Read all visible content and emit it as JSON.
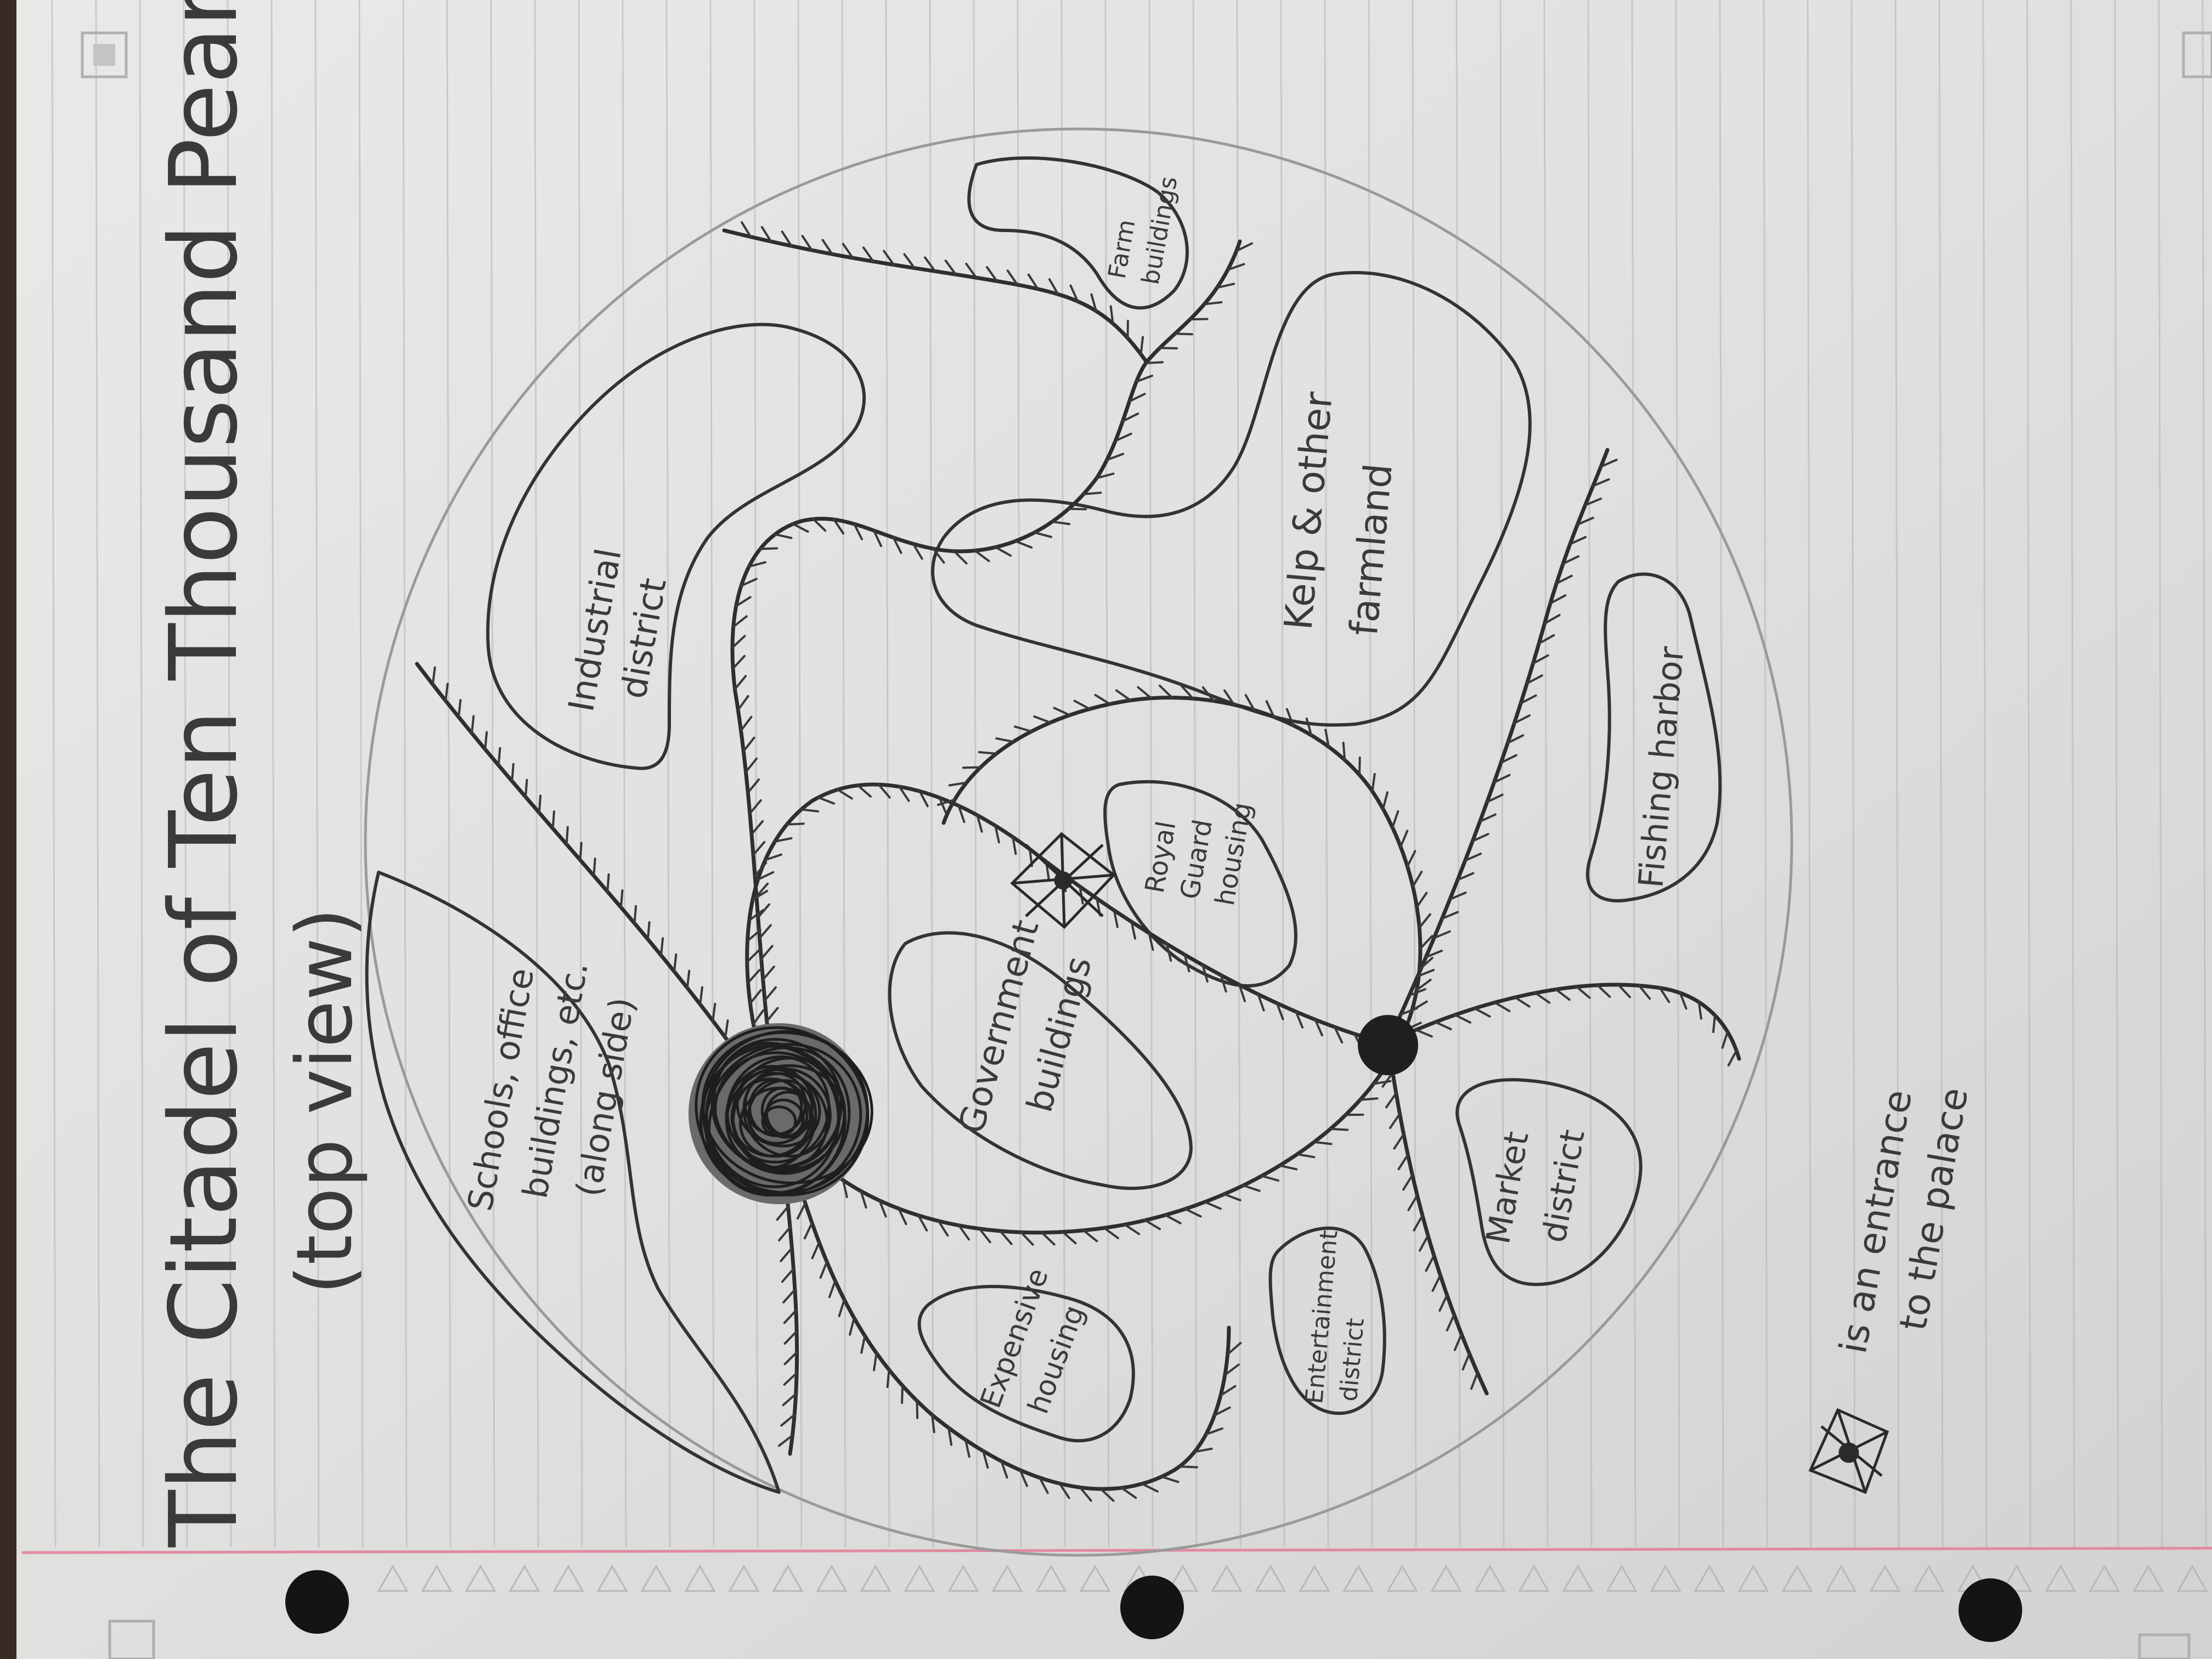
{
  "title_line1": "The Citadel of Ten Thousand Pearls",
  "title_line2": "(top view)",
  "districts": [
    {
      "id": "schools",
      "lines": [
        "Schools, office",
        "buildings, etc.",
        "(along side)"
      ]
    },
    {
      "id": "industrial",
      "lines": [
        "Industrial",
        "district"
      ]
    },
    {
      "id": "farm-buildings",
      "lines": [
        "Farm",
        "buildings"
      ]
    },
    {
      "id": "kelp-farmland",
      "lines": [
        "Kelp & other",
        "farmland"
      ]
    },
    {
      "id": "royal-guard",
      "lines": [
        "Royal",
        "Guard",
        "housing"
      ]
    },
    {
      "id": "government",
      "lines": [
        "Government",
        "buildings"
      ]
    },
    {
      "id": "fishing-harbor",
      "lines": [
        "Fishing harbor"
      ]
    },
    {
      "id": "market",
      "lines": [
        "Market",
        "district"
      ]
    },
    {
      "id": "entertainment",
      "lines": [
        "Entertainment",
        "district"
      ]
    },
    {
      "id": "expensive-housing",
      "lines": [
        "Expensive",
        "housing"
      ]
    }
  ],
  "legend": {
    "line1": "is an entrance",
    "line2": "to the palace"
  },
  "colors": {
    "paper": "#e3e3e1",
    "ruled_line": "#a8b4c4",
    "margin_line": "#e08aa0",
    "ink": "#2e2e2e",
    "pencil": "#9a9a9a"
  }
}
